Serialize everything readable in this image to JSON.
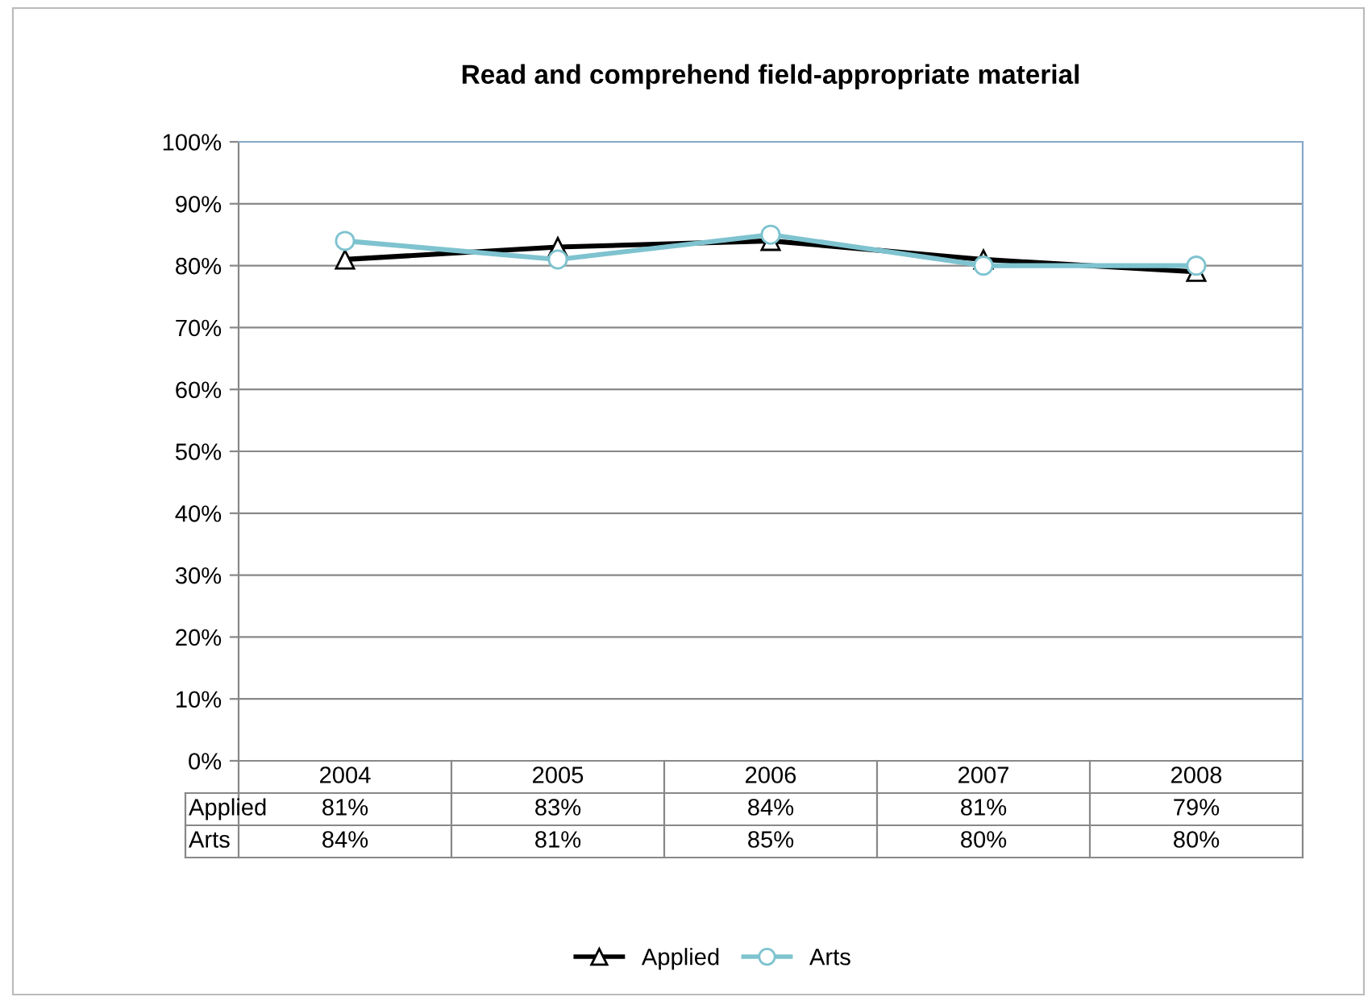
{
  "chart_data": {
    "type": "line",
    "title": "Read and comprehend field-appropriate material",
    "categories": [
      "2004",
      "2005",
      "2006",
      "2007",
      "2008"
    ],
    "series": [
      {
        "name": "Applied",
        "color": "#000000",
        "marker": "triangle",
        "values": [
          81,
          83,
          84,
          81,
          79
        ],
        "value_labels": [
          "81%",
          "83%",
          "84%",
          "81%",
          "79%"
        ]
      },
      {
        "name": "Arts",
        "color": "#7ec3cf",
        "marker": "circle",
        "values": [
          84,
          81,
          85,
          80,
          80
        ],
        "value_labels": [
          "84%",
          "81%",
          "85%",
          "80%",
          "80%"
        ]
      }
    ],
    "ylim": [
      0,
      100
    ],
    "yticks": [
      {
        "value": 0,
        "label": "0%"
      },
      {
        "value": 10,
        "label": "10%"
      },
      {
        "value": 20,
        "label": "20%"
      },
      {
        "value": 30,
        "label": "30%"
      },
      {
        "value": 40,
        "label": "40%"
      },
      {
        "value": 50,
        "label": "50%"
      },
      {
        "value": 60,
        "label": "60%"
      },
      {
        "value": 70,
        "label": "70%"
      },
      {
        "value": 80,
        "label": "80%"
      },
      {
        "value": 90,
        "label": "90%"
      },
      {
        "value": 100,
        "label": "100%"
      }
    ],
    "grid": "y",
    "legend": "bottom"
  }
}
